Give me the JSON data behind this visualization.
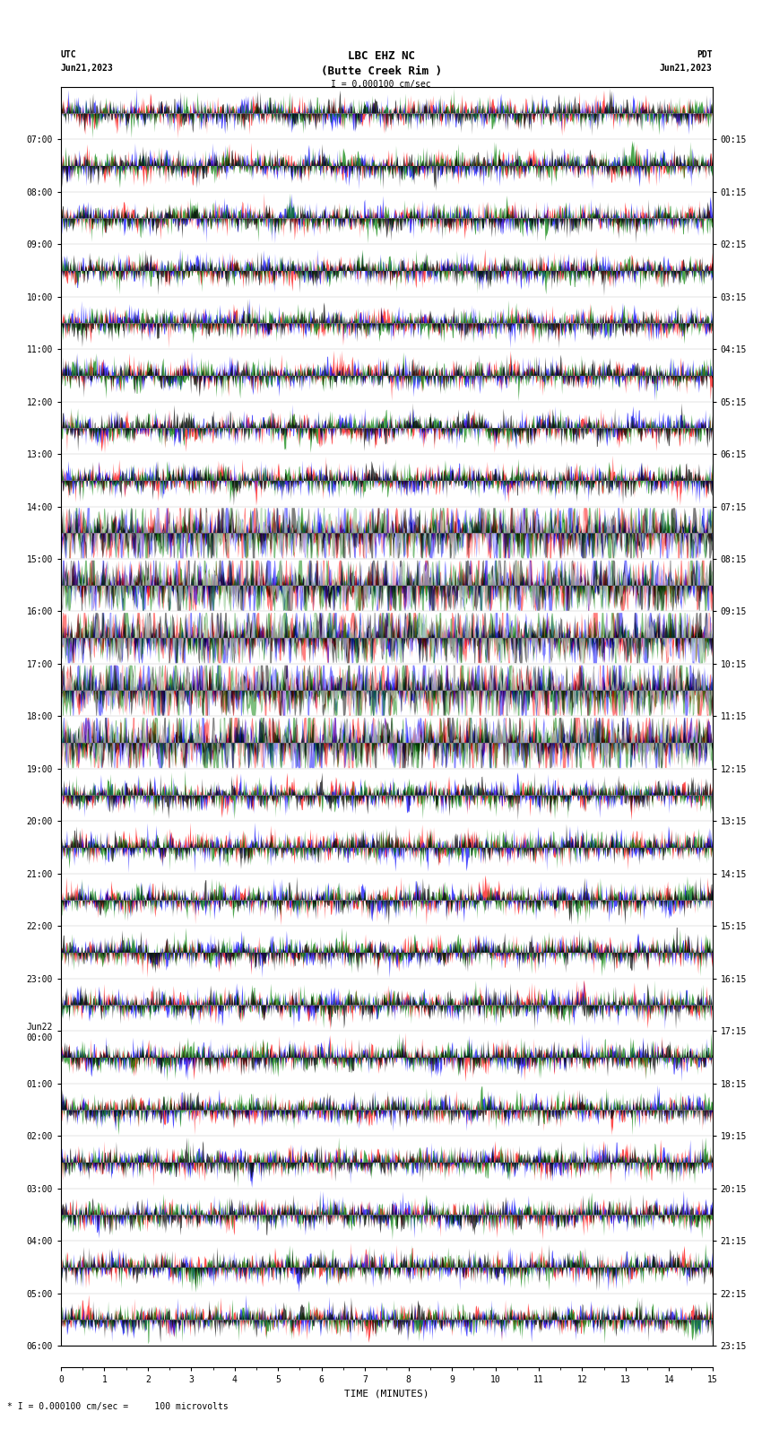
{
  "title_line1": "LBC EHZ NC",
  "title_line2": "(Butte Creek Rim )",
  "title_line3": "I = 0.000100 cm/sec",
  "left_label_top": "UTC",
  "left_label_date": "Jun21,2023",
  "right_label_top": "PDT",
  "right_label_date": "Jun21,2023",
  "bottom_label": "TIME (MINUTES)",
  "bottom_note": "* I = 0.000100 cm/sec =     100 microvolts",
  "utc_times": [
    "07:00",
    "08:00",
    "09:00",
    "10:00",
    "11:00",
    "12:00",
    "13:00",
    "14:00",
    "15:00",
    "16:00",
    "17:00",
    "18:00",
    "19:00",
    "20:00",
    "21:00",
    "22:00",
    "23:00",
    "Jun22\n00:00",
    "01:00",
    "02:00",
    "03:00",
    "04:00",
    "05:00",
    "06:00"
  ],
  "pdt_times": [
    "00:15",
    "01:15",
    "02:15",
    "03:15",
    "04:15",
    "05:15",
    "06:15",
    "07:15",
    "08:15",
    "09:15",
    "10:15",
    "11:15",
    "12:15",
    "13:15",
    "14:15",
    "15:15",
    "16:15",
    "17:15",
    "18:15",
    "19:15",
    "20:15",
    "21:15",
    "22:15",
    "23:15"
  ],
  "n_rows": 24,
  "n_cols": 900,
  "time_min": 0,
  "time_max": 15,
  "bg_color": "white",
  "plot_bg": "white",
  "colors": [
    "red",
    "blue",
    "green",
    "black"
  ],
  "seed": 42
}
